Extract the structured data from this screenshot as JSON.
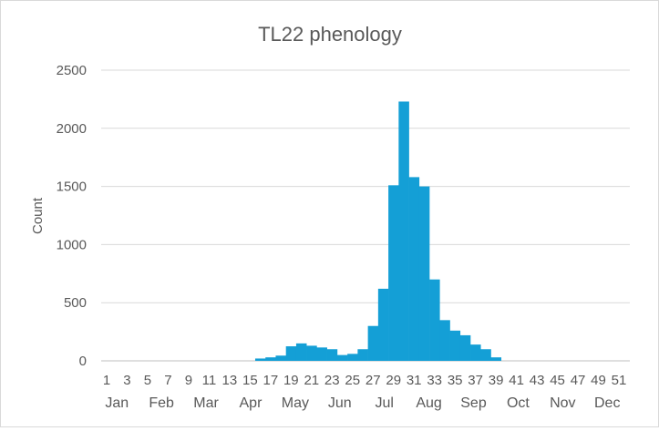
{
  "chart_data": {
    "type": "bar",
    "title": "TL22 phenology",
    "xlabel": "",
    "ylabel": "Count",
    "ylim": [
      0,
      2500
    ],
    "yticks": [
      0,
      500,
      1000,
      1500,
      2000,
      2500
    ],
    "grid": true,
    "legend": "none",
    "bar_color": "#149FD6",
    "x_tick_labels": [
      "1",
      "3",
      "5",
      "7",
      "9",
      "11",
      "13",
      "15",
      "17",
      "19",
      "21",
      "23",
      "25",
      "27",
      "29",
      "31",
      "33",
      "35",
      "37",
      "39",
      "41",
      "43",
      "45",
      "47",
      "49",
      "51"
    ],
    "month_labels": [
      "Jan",
      "Feb",
      "Mar",
      "Apr",
      "May",
      "Jun",
      "Jul",
      "Aug",
      "Sep",
      "Oct",
      "Nov",
      "Dec"
    ],
    "x": [
      16,
      17,
      18,
      19,
      20,
      21,
      22,
      23,
      24,
      25,
      26,
      27,
      28,
      29,
      30,
      31,
      32,
      33,
      34,
      35,
      36,
      37,
      38,
      39
    ],
    "values": [
      20,
      30,
      45,
      125,
      150,
      130,
      115,
      100,
      50,
      60,
      100,
      300,
      620,
      1510,
      2230,
      1580,
      1500,
      700,
      350,
      260,
      220,
      140,
      100,
      30
    ]
  }
}
